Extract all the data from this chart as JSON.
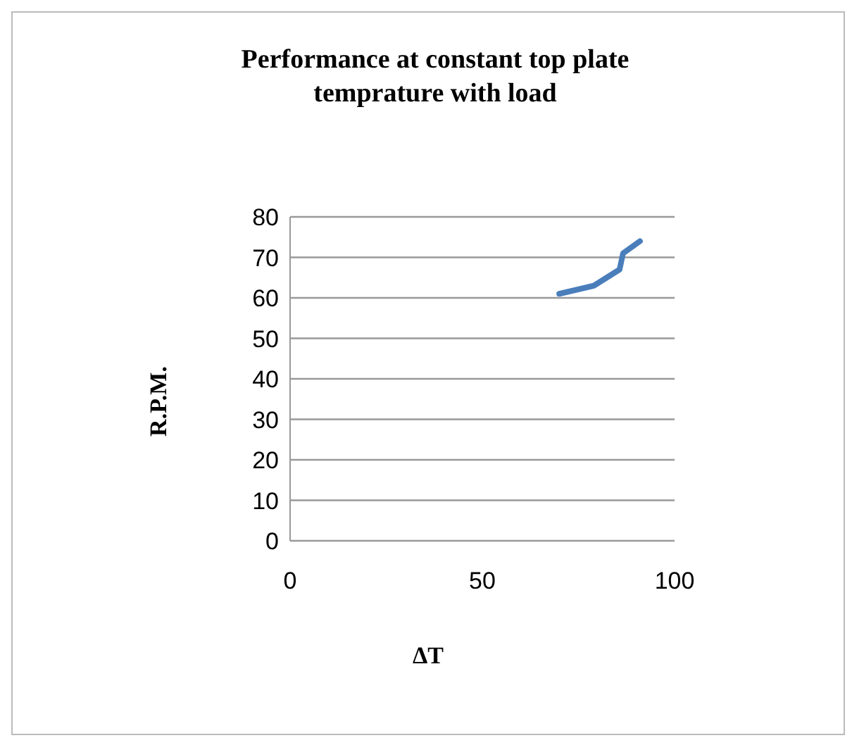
{
  "chart_data": {
    "type": "line",
    "title": "Performance at constant top plate temprature with load",
    "xlabel": "ΔT",
    "ylabel": "R.P.M.",
    "x": [
      70,
      79,
      85.7,
      86.6,
      91
    ],
    "series": [
      {
        "color": "#4a7ebb",
        "values": [
          61,
          63,
          67,
          71,
          74
        ]
      }
    ],
    "xlim": [
      0,
      100
    ],
    "xticks": [
      0,
      50,
      100
    ],
    "ylim": [
      0,
      80
    ],
    "yticks": [
      0,
      10,
      20,
      30,
      40,
      50,
      60,
      70,
      80
    ],
    "grid": "y",
    "legend": false,
    "marker": "none",
    "line_style": "solid"
  }
}
